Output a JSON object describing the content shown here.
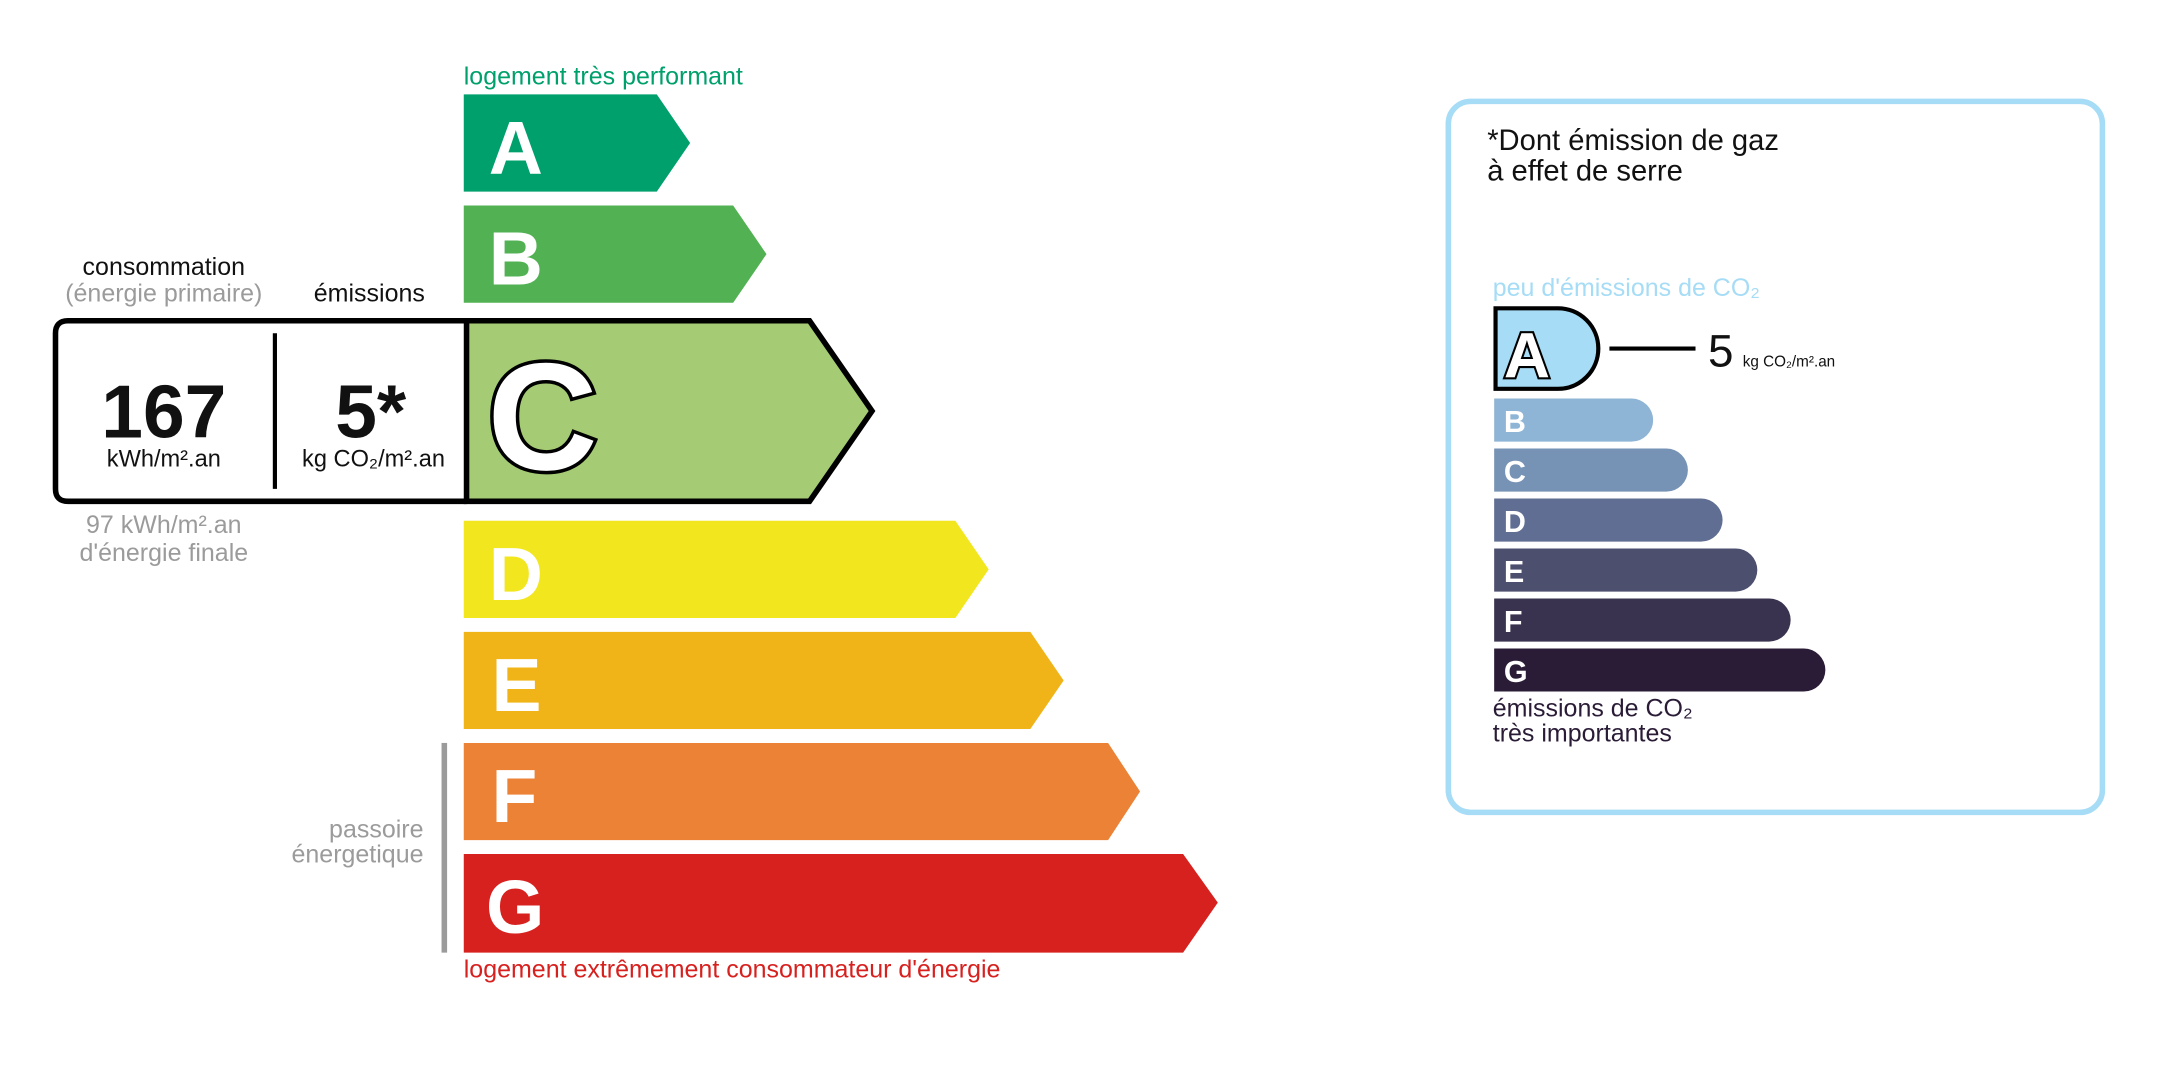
{
  "energy": {
    "top_label": "logement très performant",
    "bottom_label": "logement extrêmement consommateur d'énergie",
    "passoire_line1": "passoire",
    "passoire_line2": "énergetique",
    "classes": [
      {
        "letter": "A",
        "color": "#00a06d"
      },
      {
        "letter": "B",
        "color": "#52b153"
      },
      {
        "letter": "C",
        "color": "#a5cc74"
      },
      {
        "letter": "D",
        "color": "#f2e61f"
      },
      {
        "letter": "E",
        "color": "#f0b418"
      },
      {
        "letter": "F",
        "color": "#eb8235"
      },
      {
        "letter": "G",
        "color": "#d7211f"
      }
    ],
    "current_class": "C",
    "consumption_header": "consommation",
    "consumption_sub": "(énergie primaire)",
    "emissions_header": "émissions",
    "consumption_value": "167",
    "consumption_unit": "kWh/m².an",
    "emissions_value": "5*",
    "emissions_unit": "kg CO₂/m².an",
    "final_energy_value": "97 kWh/m².an",
    "final_energy_label": "d'énergie finale"
  },
  "ges": {
    "title_line1": "*Dont émission de gaz",
    "title_line2": "à effet de serre",
    "top_label": "peu d'émissions de CO₂",
    "bottom_line1": "émissions de CO₂",
    "bottom_line2": "très importantes",
    "current_class": "A",
    "value": "5",
    "unit": "kg CO₂/m².an",
    "border_color": "#a6dcf5",
    "classes": [
      {
        "letter": "A",
        "color": "#a6dcf5"
      },
      {
        "letter": "B",
        "color": "#8eb4d6"
      },
      {
        "letter": "C",
        "color": "#7693b5"
      },
      {
        "letter": "D",
        "color": "#5f6e92"
      },
      {
        "letter": "E",
        "color": "#4d4f6f"
      },
      {
        "letter": "F",
        "color": "#3a334f"
      },
      {
        "letter": "G",
        "color": "#2a1c36"
      }
    ]
  }
}
